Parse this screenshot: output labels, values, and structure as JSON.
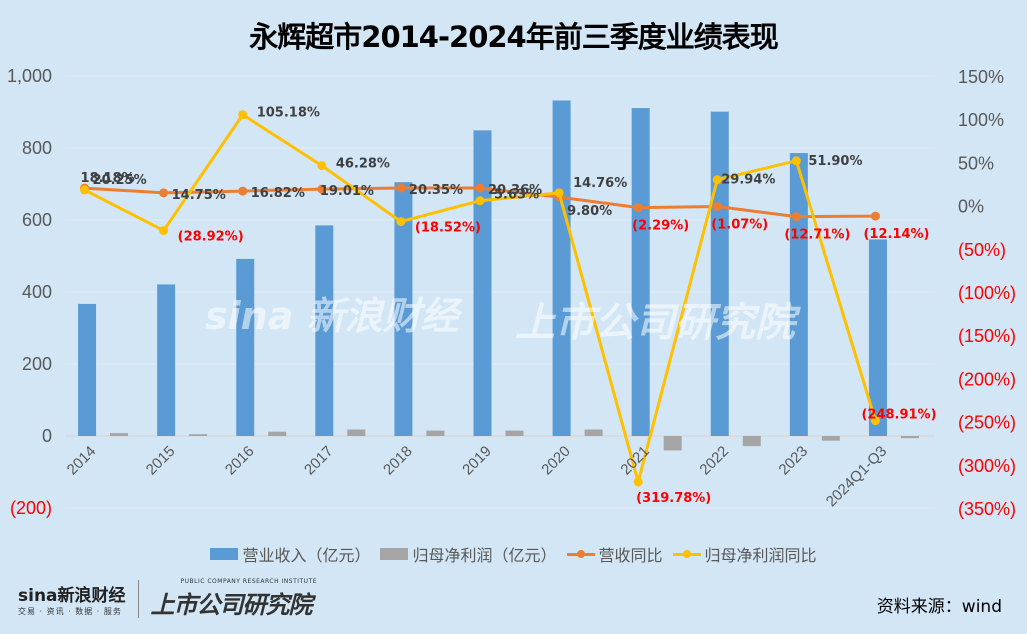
{
  "title": "永辉超市2014-2024年前三季度业绩表现",
  "source": "资料来源：wind",
  "logos": {
    "sina": "sina新浪财经",
    "sina_sub": "交易 · 资讯 · 数据 · 服务",
    "institute": "上市公司研究院",
    "institute_en": "PUBLIC COMPANY RESEARCH INSTITUTE"
  },
  "colors": {
    "revenue": "#5b9bd5",
    "profit": "#a5a5a5",
    "revenue_yoy": "#ed7d31",
    "profit_yoy": "#ffc000",
    "negative": "#ff0000"
  },
  "chart_data": {
    "type": "bar+line",
    "title": "永辉超市2014-2024年前三季度业绩表现",
    "categories": [
      "2014",
      "2015",
      "2016",
      "2017",
      "2018",
      "2019",
      "2020",
      "2021",
      "2022",
      "2023",
      "2024Q1-Q3"
    ],
    "left_axis": {
      "ylim": [
        -200,
        1000
      ],
      "ticks": [
        "(200)",
        "0",
        "200",
        "400",
        "600",
        "800",
        "1,000"
      ],
      "tick_values": [
        -200,
        0,
        200,
        400,
        600,
        800,
        1000
      ]
    },
    "right_axis": {
      "ylim": [
        -350,
        150
      ],
      "ticks": [
        "(350%)",
        "(300%)",
        "(250%)",
        "(200%)",
        "(150%)",
        "(100%)",
        "(50%)",
        "0%",
        "50%",
        "100%",
        "150%"
      ],
      "tick_values": [
        -350,
        -300,
        -250,
        -200,
        -150,
        -100,
        -50,
        0,
        50,
        100,
        150
      ]
    },
    "grid": true,
    "legend": "bottom",
    "series": [
      {
        "name": "营业收入（亿元）",
        "type": "bar",
        "axis": "left",
        "values": [
          367,
          421,
          492,
          585,
          705,
          849,
          932,
          911,
          901,
          786,
          546
        ]
      },
      {
        "name": "归母净利润（亿元）",
        "type": "bar",
        "axis": "left",
        "values": [
          8,
          5,
          12,
          18,
          15,
          15,
          18,
          -40,
          -28,
          -13,
          -6
        ]
      },
      {
        "name": "营收同比",
        "type": "line",
        "axis": "right",
        "values": [
          20.25,
          14.75,
          16.82,
          19.01,
          20.35,
          20.36,
          9.8,
          -2.29,
          -1.07,
          -12.71,
          -12.14
        ],
        "labels": [
          "20.25%",
          "14.75%",
          "16.82%",
          "19.01%",
          "20.35%",
          "20.36%",
          "9.80%",
          "(2.29%)",
          "(1.07%)",
          "(12.71%)",
          "(12.14%)"
        ]
      },
      {
        "name": "归母净利润同比",
        "type": "line",
        "axis": "right",
        "values": [
          18.18,
          -28.92,
          105.18,
          46.28,
          -18.52,
          5.63,
          14.76,
          -319.78,
          29.94,
          51.9,
          -248.91
        ],
        "labels": [
          "18.18%",
          "(28.92%)",
          "105.18%",
          "46.28%",
          "(18.52%)",
          "5.63%",
          "14.76%",
          "(319.78%)",
          "29.94%",
          "51.90%",
          "(248.91%)"
        ]
      }
    ]
  }
}
